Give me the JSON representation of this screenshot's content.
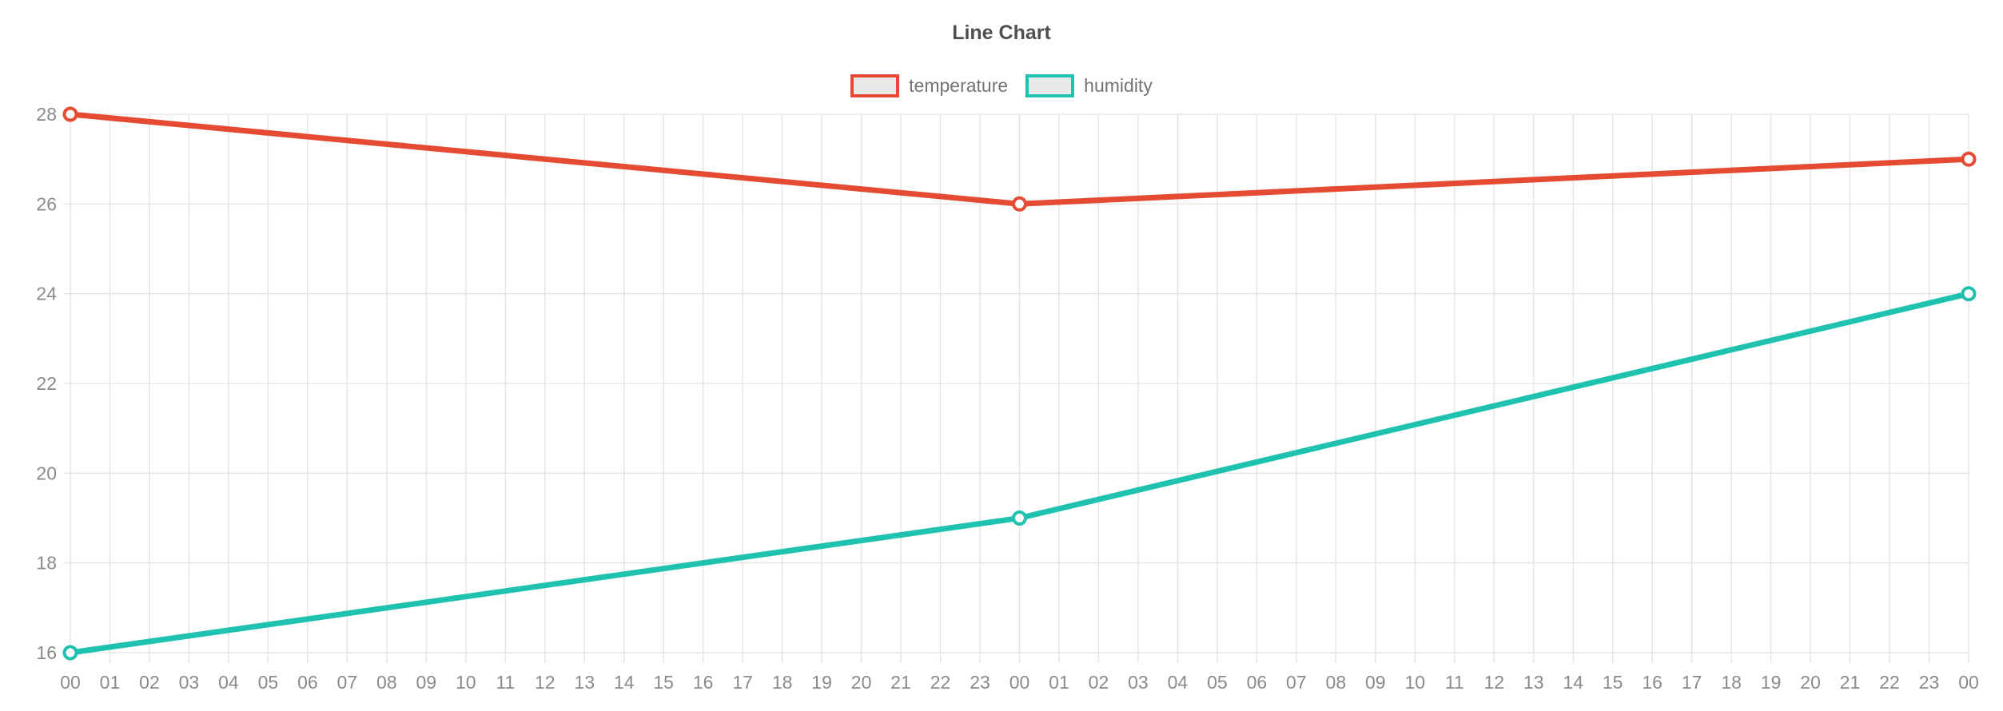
{
  "chart": {
    "title": "Line Chart",
    "legend": {
      "temperature_label": "temperature",
      "humidity_label": "humidity"
    }
  },
  "chart_data": {
    "type": "line",
    "title": "Line Chart",
    "x": [
      "00",
      "01",
      "02",
      "03",
      "04",
      "05",
      "06",
      "07",
      "08",
      "09",
      "10",
      "11",
      "12",
      "13",
      "14",
      "15",
      "16",
      "17",
      "18",
      "19",
      "20",
      "21",
      "22",
      "23",
      "00",
      "01",
      "02",
      "03",
      "04",
      "05",
      "06",
      "07",
      "08",
      "09",
      "10",
      "11",
      "12",
      "13",
      "14",
      "15",
      "16",
      "17",
      "18",
      "19",
      "20",
      "21",
      "22",
      "23",
      "00"
    ],
    "series": [
      {
        "name": "temperature",
        "color": "#e54a32",
        "points": [
          {
            "x_index": 0,
            "value": 28
          },
          {
            "x_index": 24,
            "value": 26
          },
          {
            "x_index": 48,
            "value": 27
          }
        ]
      },
      {
        "name": "humidity",
        "color": "#1fc2ae",
        "points": [
          {
            "x_index": 0,
            "value": 16
          },
          {
            "x_index": 24,
            "value": 19
          },
          {
            "x_index": 48,
            "value": 24
          }
        ]
      }
    ],
    "ylim": [
      16,
      28
    ],
    "y_ticks": [
      16,
      18,
      20,
      22,
      24,
      26,
      28
    ],
    "grid": true,
    "legend_position": "top",
    "marker": "hollow-circle",
    "background": "#ffffff"
  }
}
